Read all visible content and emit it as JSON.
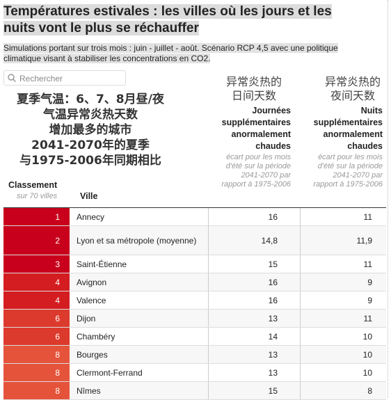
{
  "header": {
    "title": "Températures estivales : les villes où les jours et les nuits vont le plus se réchauffer",
    "subtitle": "Simulations portant sur trois mois : juin - juillet - août. Scénario RCP 4,5 avec une politique climatique visant à stabiliser les concentrations en CO2."
  },
  "search": {
    "placeholder": "Rechercher"
  },
  "overlay": {
    "lines": [
      "夏季气温：6、7、8月昼/夜",
      "气温异常炎热天数",
      "增加最多的城市",
      "2041-2070年的夏季",
      "与1975-2006年同期相比"
    ],
    "day_header": [
      "异常炎热的",
      "日间天数"
    ],
    "night_header": [
      "异常炎热的",
      "夜间天数"
    ]
  },
  "table": {
    "columns": [
      {
        "title": "Classement",
        "note": "sur 70 villes"
      },
      {
        "title": "Ville"
      },
      {
        "title": "Journées supplémentaires anormalement chaudes",
        "note": "écart pour les mois d'été sur la période 2041-2070 par rapport à 1975-2006"
      },
      {
        "title": "Nuits supplémentaires anormalement chaudes",
        "note": "écart pour les mois d'été sur la période 2041-2070 par rapport à 1975-2006"
      }
    ],
    "rows": [
      [
        "1",
        "Annecy",
        "16",
        "11"
      ],
      [
        "2",
        "Lyon et sa métropole (moyenne)",
        "14,8",
        "11,9"
      ],
      [
        "3",
        "Saint-Étienne",
        "15",
        "11"
      ],
      [
        "4",
        "Avignon",
        "16",
        "9"
      ],
      [
        "4",
        "Valence",
        "16",
        "9"
      ],
      [
        "6",
        "Dijon",
        "13",
        "11"
      ],
      [
        "6",
        "Chambéry",
        "14",
        "10"
      ],
      [
        "8",
        "Bourges",
        "13",
        "10"
      ],
      [
        "8",
        "Clermont-Ferrand",
        "13",
        "10"
      ],
      [
        "8",
        "Nîmes",
        "15",
        "8"
      ]
    ]
  }
}
